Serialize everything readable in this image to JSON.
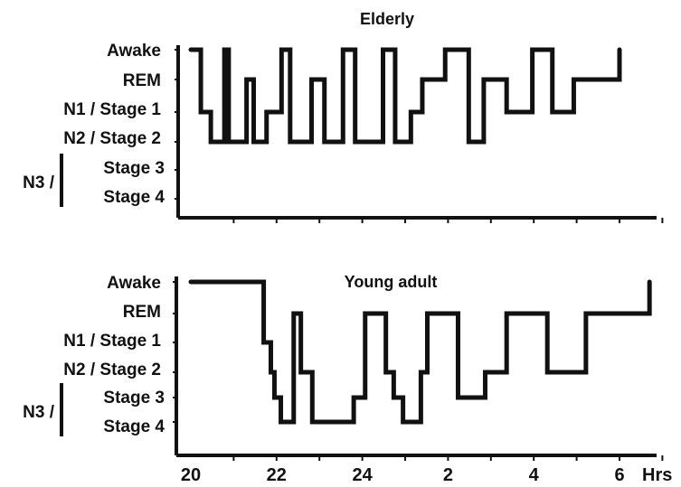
{
  "chart_data": [
    {
      "type": "line",
      "subtype": "step-hypnogram",
      "title": "Elderly",
      "stages": [
        "Awake",
        "REM",
        "N1 / Stage 1",
        "N2 / Stage 2",
        "Stage 3",
        "Stage 4"
      ],
      "n3_label": "N3 /",
      "xlim": [
        "20:00",
        "06:50"
      ],
      "segments": [
        {
          "start": "20:00",
          "stage": "Awake"
        },
        {
          "start": "20:14",
          "stage": "N1 / Stage 1"
        },
        {
          "start": "20:28",
          "stage": "N2 / Stage 2"
        },
        {
          "start": "20:47",
          "stage": "Awake"
        },
        {
          "start": "20:53",
          "stage": "N2 / Stage 2"
        },
        {
          "start": "21:18",
          "stage": "REM"
        },
        {
          "start": "21:28",
          "stage": "N2 / Stage 2"
        },
        {
          "start": "21:46",
          "stage": "N1 / Stage 1"
        },
        {
          "start": "22:07",
          "stage": "Awake"
        },
        {
          "start": "22:19",
          "stage": "N2 / Stage 2"
        },
        {
          "start": "22:49",
          "stage": "REM"
        },
        {
          "start": "23:07",
          "stage": "N2 / Stage 2"
        },
        {
          "start": "23:33",
          "stage": "Awake"
        },
        {
          "start": "23:50",
          "stage": "N2 / Stage 2"
        },
        {
          "start": "00:29",
          "stage": "Awake"
        },
        {
          "start": "00:46",
          "stage": "N2 / Stage 2"
        },
        {
          "start": "01:08",
          "stage": "N1 / Stage 1"
        },
        {
          "start": "01:24",
          "stage": "REM"
        },
        {
          "start": "01:56",
          "stage": "Awake"
        },
        {
          "start": "02:29",
          "stage": "N2 / Stage 2"
        },
        {
          "start": "02:50",
          "stage": "REM"
        },
        {
          "start": "03:22",
          "stage": "N1 / Stage 1"
        },
        {
          "start": "03:58",
          "stage": "Awake"
        },
        {
          "start": "04:26",
          "stage": "N1 / Stage 1"
        },
        {
          "start": "04:56",
          "stage": "REM"
        },
        {
          "start": "06:00",
          "stage": "Awake"
        }
      ],
      "end": "06:00"
    },
    {
      "type": "line",
      "subtype": "step-hypnogram",
      "title": "Young adult",
      "stages": [
        "Awake",
        "REM",
        "N1 / Stage 1",
        "N2 / Stage 2",
        "Stage 3",
        "Stage 4"
      ],
      "n3_label": "N3 /",
      "xlabel": "Hrs",
      "xticks": [
        "20",
        "22",
        "24",
        "2",
        "4",
        "6"
      ],
      "xlim": [
        "20:00",
        "06:50"
      ],
      "segments": [
        {
          "start": "20:00",
          "stage": "Awake"
        },
        {
          "start": "21:42",
          "stage": "N1 / Stage 1"
        },
        {
          "start": "21:52",
          "stage": "N2 / Stage 2"
        },
        {
          "start": "21:57",
          "stage": "Stage 3"
        },
        {
          "start": "22:06",
          "stage": "Stage 4"
        },
        {
          "start": "22:24",
          "stage": "REM"
        },
        {
          "start": "22:34",
          "stage": "N2 / Stage 2"
        },
        {
          "start": "22:50",
          "stage": "Stage 4"
        },
        {
          "start": "23:48",
          "stage": "Stage 3"
        },
        {
          "start": "00:04",
          "stage": "REM"
        },
        {
          "start": "00:33",
          "stage": "N2 / Stage 2"
        },
        {
          "start": "00:44",
          "stage": "Stage 3"
        },
        {
          "start": "00:57",
          "stage": "Stage 4"
        },
        {
          "start": "01:22",
          "stage": "N2 / Stage 2"
        },
        {
          "start": "01:31",
          "stage": "REM"
        },
        {
          "start": "02:14",
          "stage": "Stage 3"
        },
        {
          "start": "02:52",
          "stage": "N2 / Stage 2"
        },
        {
          "start": "03:22",
          "stage": "REM"
        },
        {
          "start": "04:19",
          "stage": "N2 / Stage 2"
        },
        {
          "start": "05:13",
          "stage": "REM"
        },
        {
          "start": "06:42",
          "stage": "Awake"
        }
      ],
      "end": "06:42"
    }
  ]
}
